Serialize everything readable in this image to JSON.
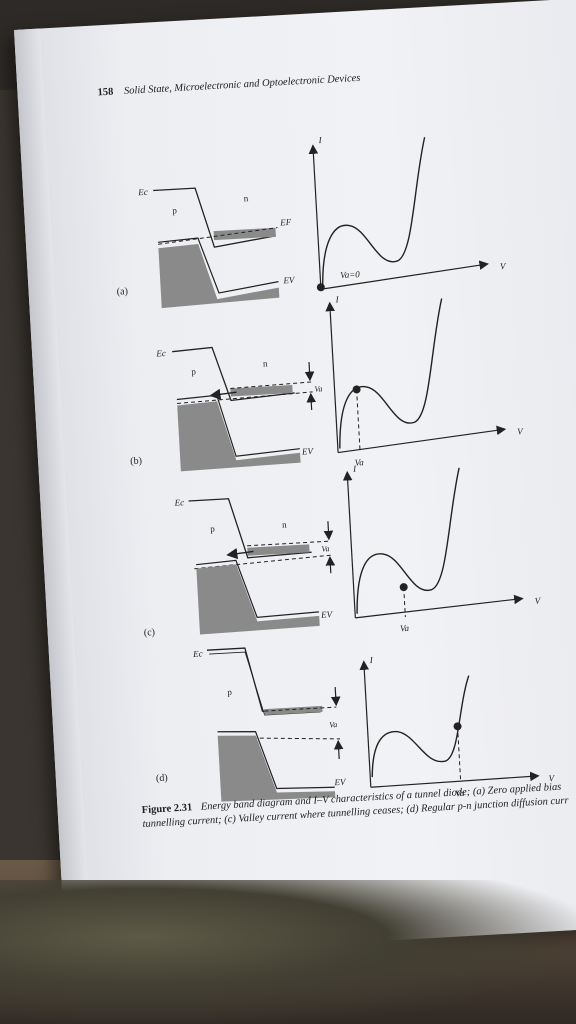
{
  "header": {
    "page_number": "158",
    "book_title": "Solid State, Microelectronic and Optoelectronic Devices"
  },
  "panels": [
    {
      "id": "a",
      "tag": "(a)",
      "ec": "Ec",
      "p": "p",
      "n": "n",
      "ef": "EF",
      "ev": "EV",
      "va": "Va=0",
      "i": "I",
      "v": "V"
    },
    {
      "id": "b",
      "tag": "(b)",
      "ec": "Ec",
      "p": "p",
      "n": "n",
      "va_band": "Va",
      "ev": "EV",
      "va": "Va",
      "i": "I",
      "v": "V"
    },
    {
      "id": "c",
      "tag": "(c)",
      "ec": "Ec",
      "p": "p",
      "n": "n",
      "va_band": "Va",
      "ev": "EV",
      "va": "Va",
      "i": "I",
      "v": "V"
    },
    {
      "id": "d",
      "tag": "(d)",
      "ec": "Ec",
      "p": "p",
      "va_band": "Va",
      "ev": "EV",
      "va": "Va",
      "i": "I",
      "v": "V"
    }
  ],
  "caption": {
    "figure_number": "Figure 2.31",
    "text_lead": "Energy band diagram and I–V characteristics of a tunnel diode; (a) Zero applied bias",
    "text_line2": "tunnelling current; (c) Valley current where tunnelling ceases; (d) Regular p-n junction diffusion curr"
  },
  "colors": {
    "ink": "#222222",
    "shade": "#8a8a8a",
    "page": "#eef0f3"
  }
}
